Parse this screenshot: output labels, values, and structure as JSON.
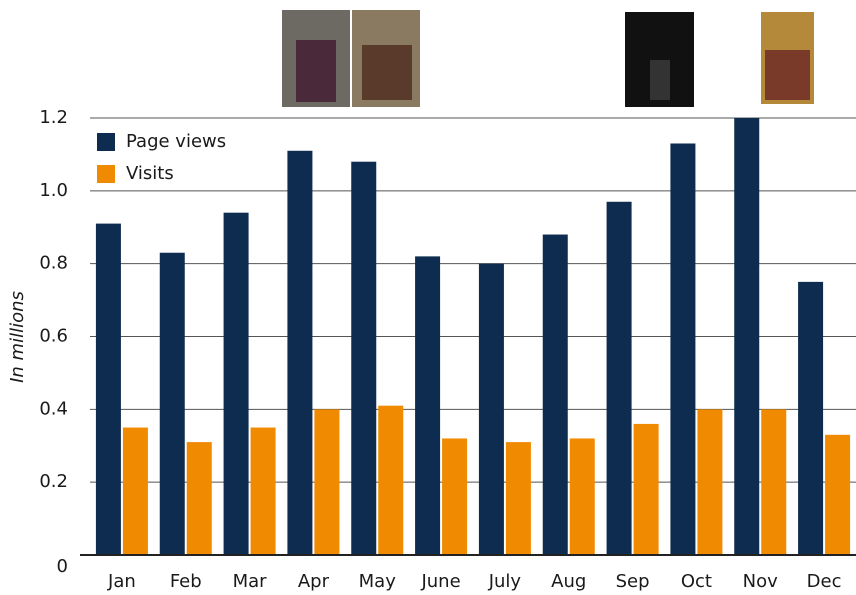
{
  "chart_data": {
    "type": "bar",
    "y_label": "In millions",
    "categories": [
      "Jan",
      "Feb",
      "Mar",
      "Apr",
      "May",
      "June",
      "July",
      "Aug",
      "Sep",
      "Oct",
      "Nov",
      "Dec"
    ],
    "series": [
      {
        "name": "Page views",
        "color": "#0d2c4f",
        "values": [
          0.91,
          0.83,
          0.94,
          1.11,
          1.08,
          0.82,
          0.8,
          0.88,
          0.97,
          1.13,
          1.2,
          0.75
        ]
      },
      {
        "name": "Visits",
        "color": "#f08a00",
        "values": [
          0.35,
          0.31,
          0.35,
          0.4,
          0.41,
          0.32,
          0.31,
          0.32,
          0.36,
          0.4,
          0.4,
          0.33
        ]
      }
    ],
    "ylim": [
      0,
      1.2
    ],
    "yticks": [
      0,
      0.2,
      0.4,
      0.6,
      0.8,
      {
        "value": 1,
        "label": "1.0"
      },
      1.2
    ],
    "grid": true,
    "legend": "top-left"
  }
}
